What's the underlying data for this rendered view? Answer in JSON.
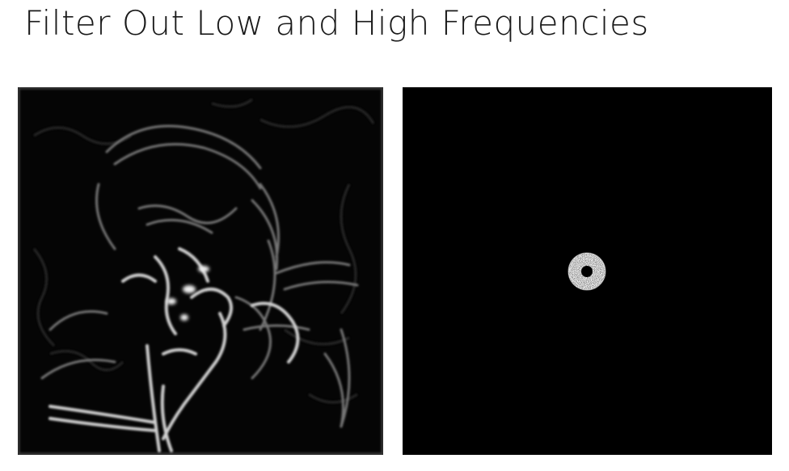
{
  "slide": {
    "title": "Filter Out Low and High Frequencies"
  },
  "figures": [
    {
      "icon": "band-pass-filtered-image"
    },
    {
      "icon": "fourier-spectrum-ring-mask"
    }
  ]
}
